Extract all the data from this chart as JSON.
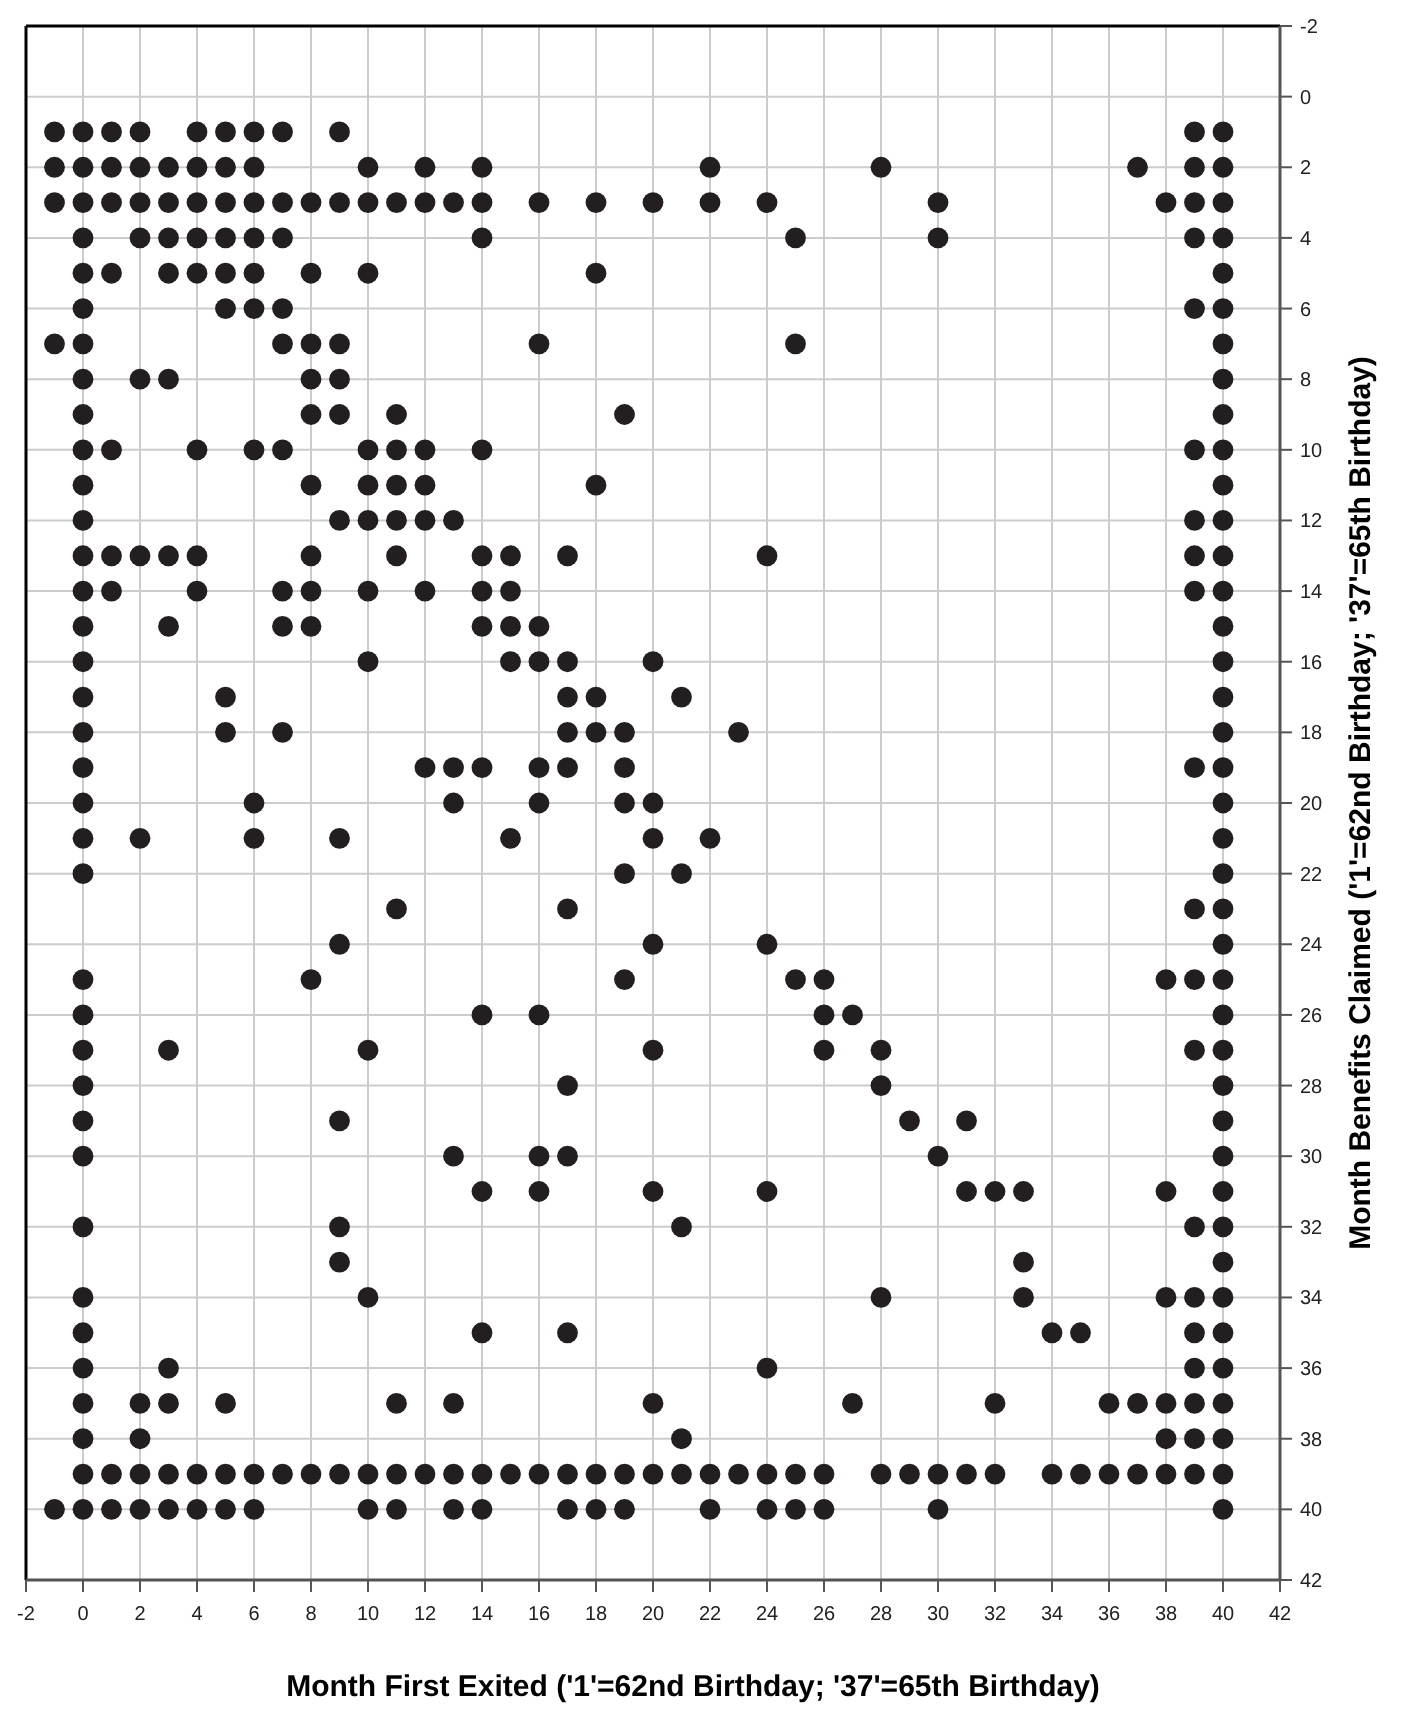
{
  "chart_data": {
    "type": "scatter",
    "xlabel": "Month First Exited ('1'=62nd Birthday; '37'=65th Birthday)",
    "ylabel": "Month Benefits Claimed ('1'=62nd Birthday; '37'=65th Birthday)",
    "xlim": [
      -2,
      42
    ],
    "xticks": [
      -2,
      0,
      2,
      4,
      6,
      8,
      10,
      12,
      14,
      16,
      18,
      20,
      22,
      24,
      26,
      28,
      30,
      32,
      34,
      36,
      38,
      40,
      42
    ],
    "ylim": [
      42,
      -2
    ],
    "yticks": [
      -2,
      0,
      2,
      4,
      6,
      8,
      10,
      12,
      14,
      16,
      18,
      20,
      22,
      24,
      26,
      28,
      30,
      32,
      34,
      36,
      38,
      40,
      42
    ],
    "grid": true,
    "marker": "circle",
    "series": [
      {
        "color": "#231f20",
        "x": [
          -1,
          0,
          1,
          2,
          4,
          5,
          6,
          7,
          9,
          39,
          40,
          -1,
          0,
          1,
          2,
          3,
          4,
          5,
          6,
          10,
          12,
          14,
          22,
          28,
          37,
          39,
          40,
          -1,
          0,
          1,
          2,
          3,
          4,
          5,
          6,
          7,
          8,
          9,
          10,
          11,
          12,
          13,
          14,
          16,
          18,
          20,
          22,
          24,
          30,
          38,
          39,
          40,
          0,
          2,
          3,
          4,
          5,
          6,
          7,
          14,
          25,
          30,
          39,
          40,
          0,
          1,
          3,
          4,
          5,
          6,
          8,
          10,
          18,
          40,
          0,
          5,
          6,
          7,
          39,
          40,
          -1,
          0,
          7,
          8,
          9,
          16,
          25,
          40,
          0,
          2,
          3,
          8,
          9,
          40,
          0,
          8,
          9,
          11,
          19,
          40,
          0,
          1,
          4,
          6,
          7,
          10,
          11,
          12,
          14,
          39,
          40,
          0,
          8,
          10,
          11,
          12,
          18,
          40,
          0,
          9,
          10,
          11,
          12,
          13,
          39,
          40,
          0,
          1,
          2,
          3,
          4,
          8,
          11,
          14,
          15,
          17,
          24,
          39,
          40,
          0,
          1,
          4,
          7,
          8,
          10,
          12,
          14,
          15,
          39,
          40,
          0,
          3,
          7,
          8,
          14,
          15,
          16,
          40,
          0,
          10,
          15,
          16,
          17,
          20,
          40,
          0,
          5,
          17,
          18,
          21,
          40,
          0,
          5,
          7,
          17,
          18,
          19,
          23,
          40,
          0,
          12,
          13,
          14,
          16,
          17,
          19,
          39,
          40,
          0,
          6,
          13,
          16,
          19,
          20,
          40,
          0,
          2,
          6,
          9,
          15,
          20,
          22,
          40,
          0,
          19,
          21,
          40,
          11,
          17,
          39,
          40,
          9,
          20,
          24,
          40,
          0,
          8,
          19,
          25,
          26,
          38,
          39,
          40,
          0,
          14,
          16,
          26,
          27,
          40,
          0,
          3,
          10,
          20,
          26,
          28,
          39,
          40,
          0,
          17,
          28,
          40,
          0,
          9,
          29,
          31,
          40,
          0,
          13,
          16,
          17,
          30,
          40,
          14,
          16,
          20,
          24,
          31,
          32,
          33,
          38,
          40,
          0,
          9,
          21,
          39,
          40,
          9,
          33,
          40,
          0,
          10,
          28,
          33,
          38,
          39,
          40,
          0,
          14,
          17,
          34,
          35,
          39,
          40,
          0,
          3,
          24,
          39,
          40,
          0,
          2,
          3,
          5,
          11,
          13,
          20,
          27,
          32,
          36,
          37,
          38,
          39,
          40,
          0,
          2,
          21,
          38,
          39,
          40,
          0,
          1,
          2,
          3,
          4,
          5,
          6,
          7,
          8,
          9,
          10,
          11,
          12,
          13,
          14,
          15,
          16,
          17,
          18,
          19,
          20,
          21,
          22,
          23,
          24,
          25,
          26,
          28,
          29,
          30,
          31,
          32,
          34,
          35,
          36,
          37,
          38,
          39,
          40,
          -1,
          0,
          1,
          2,
          3,
          4,
          5,
          6,
          10,
          11,
          13,
          14,
          17,
          18,
          19,
          22,
          24,
          25,
          26,
          30,
          40
        ],
        "values": [
          1,
          1,
          1,
          1,
          1,
          1,
          1,
          1,
          1,
          1,
          1,
          2,
          2,
          2,
          2,
          2,
          2,
          2,
          2,
          2,
          2,
          2,
          2,
          2,
          2,
          2,
          2,
          3,
          3,
          3,
          3,
          3,
          3,
          3,
          3,
          3,
          3,
          3,
          3,
          3,
          3,
          3,
          3,
          3,
          3,
          3,
          3,
          3,
          3,
          3,
          3,
          3,
          4,
          4,
          4,
          4,
          4,
          4,
          4,
          4,
          4,
          4,
          4,
          4,
          5,
          5,
          5,
          5,
          5,
          5,
          5,
          5,
          5,
          5,
          6,
          6,
          6,
          6,
          6,
          6,
          7,
          7,
          7,
          7,
          7,
          7,
          7,
          7,
          8,
          8,
          8,
          8,
          8,
          8,
          9,
          9,
          9,
          9,
          9,
          9,
          10,
          10,
          10,
          10,
          10,
          10,
          10,
          10,
          10,
          10,
          10,
          11,
          11,
          11,
          11,
          11,
          11,
          11,
          12,
          12,
          12,
          12,
          12,
          12,
          12,
          12,
          13,
          13,
          13,
          13,
          13,
          13,
          13,
          13,
          13,
          13,
          13,
          13,
          13,
          14,
          14,
          14,
          14,
          14,
          14,
          14,
          14,
          14,
          14,
          14,
          15,
          15,
          15,
          15,
          15,
          15,
          15,
          15,
          16,
          16,
          16,
          16,
          16,
          16,
          16,
          17,
          17,
          17,
          17,
          17,
          17,
          18,
          18,
          18,
          18,
          18,
          18,
          18,
          18,
          19,
          19,
          19,
          19,
          19,
          19,
          19,
          19,
          19,
          20,
          20,
          20,
          20,
          20,
          20,
          20,
          21,
          21,
          21,
          21,
          21,
          21,
          21,
          21,
          22,
          22,
          22,
          22,
          23,
          23,
          23,
          23,
          24,
          24,
          24,
          24,
          25,
          25,
          25,
          25,
          25,
          25,
          25,
          25,
          26,
          26,
          26,
          26,
          26,
          26,
          27,
          27,
          27,
          27,
          27,
          27,
          27,
          27,
          28,
          28,
          28,
          28,
          29,
          29,
          29,
          29,
          29,
          30,
          30,
          30,
          30,
          30,
          30,
          31,
          31,
          31,
          31,
          31,
          31,
          31,
          31,
          31,
          32,
          32,
          32,
          32,
          32,
          33,
          33,
          33,
          34,
          34,
          34,
          34,
          34,
          34,
          34,
          35,
          35,
          35,
          35,
          35,
          35,
          35,
          36,
          36,
          36,
          36,
          36,
          37,
          37,
          37,
          37,
          37,
          37,
          37,
          37,
          37,
          37,
          37,
          37,
          37,
          37,
          38,
          38,
          38,
          38,
          38,
          38,
          39,
          39,
          39,
          39,
          39,
          39,
          39,
          39,
          39,
          39,
          39,
          39,
          39,
          39,
          39,
          39,
          39,
          39,
          39,
          39,
          39,
          39,
          39,
          39,
          39,
          39,
          39,
          39,
          39,
          39,
          39,
          39,
          39,
          39,
          39,
          39,
          39,
          39,
          39,
          40,
          40,
          40,
          40,
          40,
          40,
          40,
          40,
          40,
          40,
          40,
          40,
          40,
          40,
          40,
          40,
          40,
          40,
          40,
          40,
          40
        ]
      }
    ]
  }
}
